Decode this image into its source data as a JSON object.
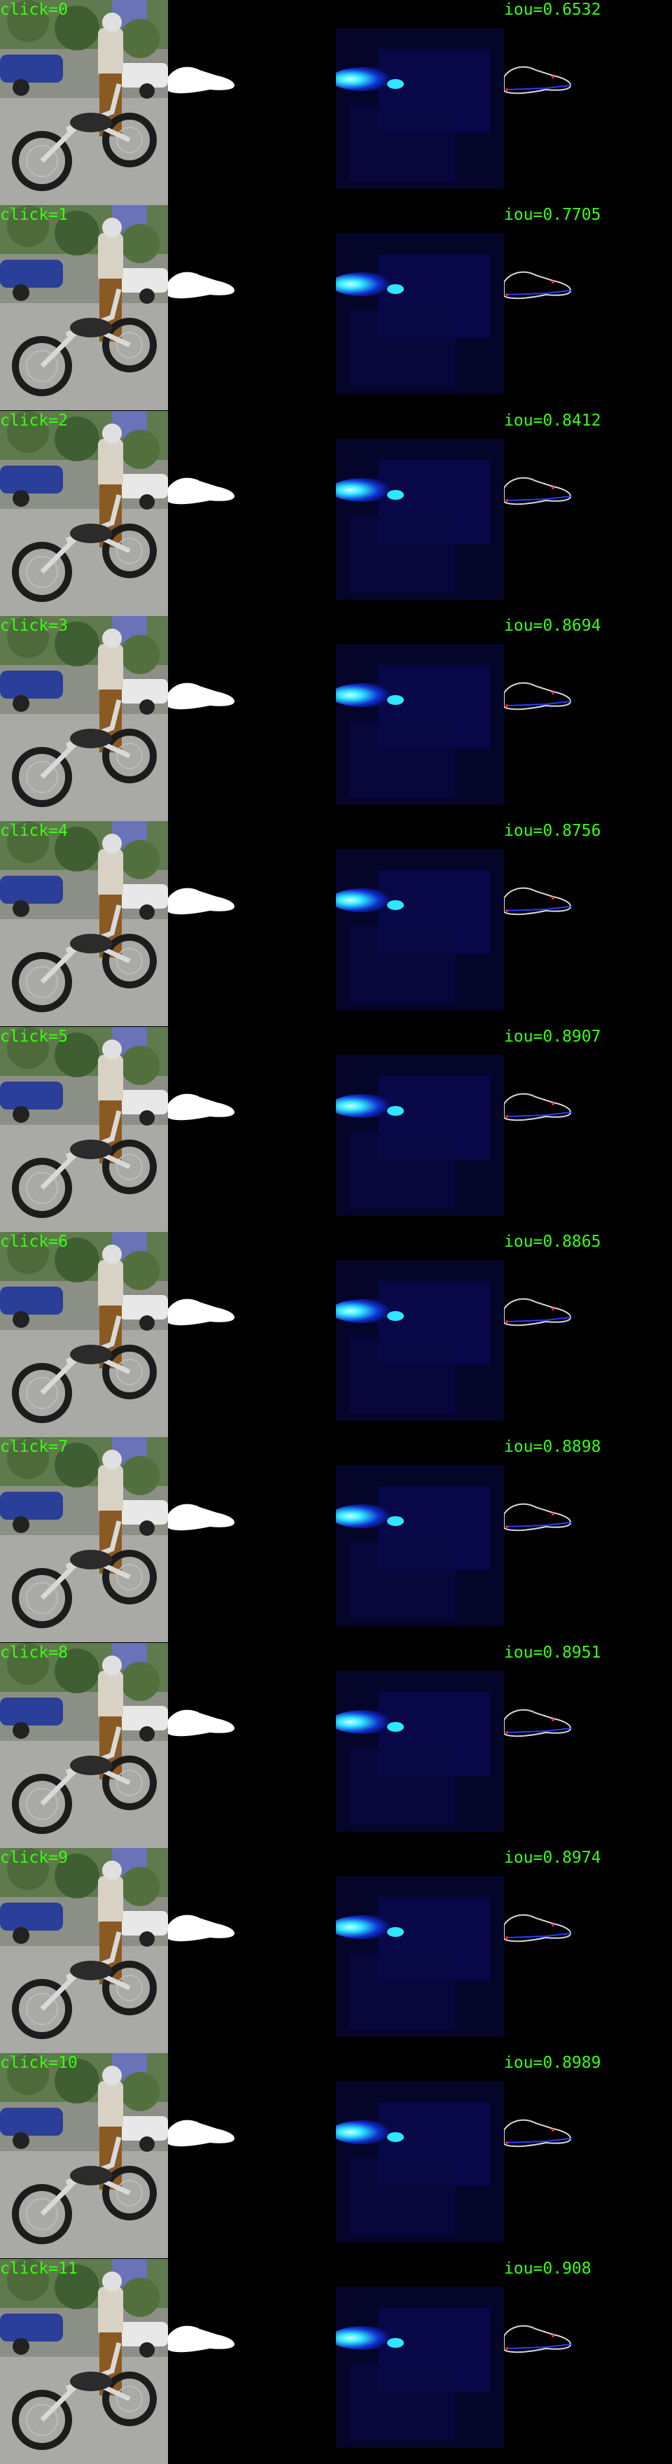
{
  "panels": [
    {
      "click_label": "click=0",
      "iou_label": "iou=0.6532"
    },
    {
      "click_label": "click=1",
      "iou_label": "iou=0.7705"
    },
    {
      "click_label": "click=2",
      "iou_label": "iou=0.8412"
    },
    {
      "click_label": "click=3",
      "iou_label": "iou=0.8694"
    },
    {
      "click_label": "click=4",
      "iou_label": "iou=0.8756"
    },
    {
      "click_label": "click=5",
      "iou_label": "iou=0.8907"
    },
    {
      "click_label": "click=6",
      "iou_label": "iou=0.8865"
    },
    {
      "click_label": "click=7",
      "iou_label": "iou=0.8898"
    },
    {
      "click_label": "click=8",
      "iou_label": "iou=0.8951"
    },
    {
      "click_label": "click=9",
      "iou_label": "iou=0.8974"
    },
    {
      "click_label": "click=10",
      "iou_label": "iou=0.8989"
    },
    {
      "click_label": "click=11",
      "iou_label": "iou=0.908"
    }
  ],
  "colors": {
    "background": "#000000",
    "label_text": "#39ff14",
    "mask": "#ffffff",
    "heat_low": "#0a0a5a",
    "heat_high": "#2fe6ff"
  },
  "icons": {
    "scene": "motorcycle-rider-photo",
    "mask": "segmentation-mask-silhouette",
    "heatmap": "prediction-heatmap",
    "comparison": "mask-contour-overlay"
  }
}
